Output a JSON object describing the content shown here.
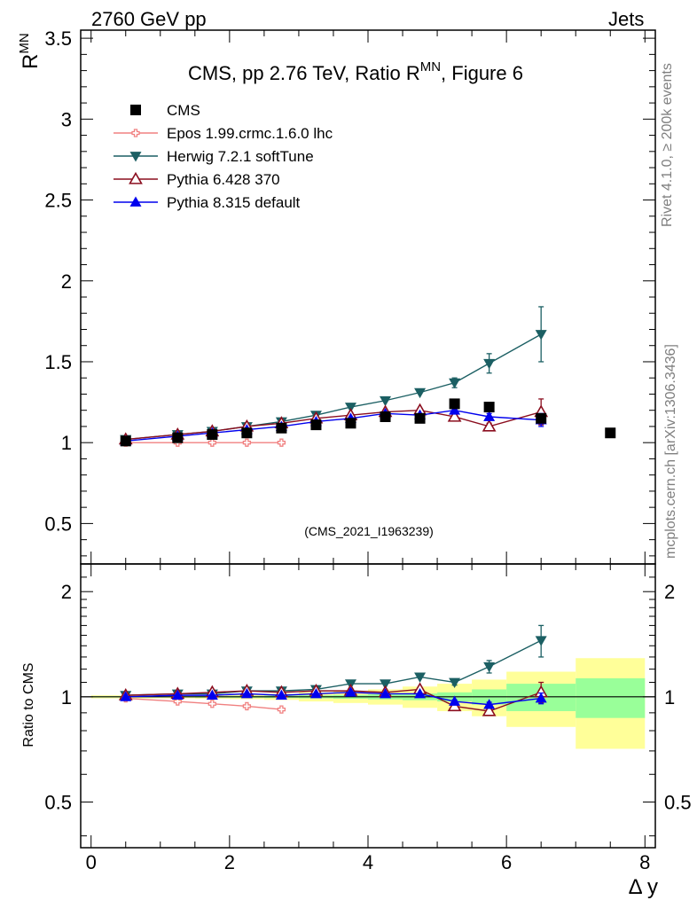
{
  "header": {
    "left": "2760 GeV pp",
    "right": "Jets"
  },
  "side_labels": {
    "rivet": "Rivet 4.1.0, ≥ 200k events",
    "mcplots": "mcplots.cern.ch [arXiv:1306.3436]"
  },
  "chart_data": {
    "type": "scatter",
    "title": "CMS, pp 2.76 TeV, Ratio R",
    "title_superscript": "MN",
    "title_suffix": ", Figure 6",
    "analysis_id": "(CMS_2021_I1963239)",
    "ylabel": "R",
    "ylabel_superscript": "MN",
    "xlabel": "Δ y",
    "ratio_ylabel": "Ratio to CMS",
    "xlim": [
      -0.15,
      8.15
    ],
    "ylim": [
      0.25,
      3.55
    ],
    "ratio_ylim": [
      0.37,
      2.4
    ],
    "x_ticks": [
      0,
      2,
      4,
      6,
      8
    ],
    "y_ticks": [
      0.5,
      1,
      1.5,
      2,
      2.5,
      3,
      3.5
    ],
    "ratio_ticks": [
      0.5,
      1,
      2
    ],
    "data": {
      "name": "CMS",
      "x": [
        0.5,
        1.25,
        1.75,
        2.25,
        2.75,
        3.25,
        3.75,
        4.25,
        4.75,
        5.25,
        5.75,
        6.5,
        7.5
      ],
      "y": [
        1.01,
        1.03,
        1.05,
        1.06,
        1.09,
        1.11,
        1.12,
        1.16,
        1.15,
        1.24,
        1.22,
        1.15,
        1.06
      ]
    },
    "series": [
      {
        "name": "Epos 1.99.crmc.1.6.0 lhc",
        "color": "#f08080",
        "marker": "cross",
        "x": [
          0.5,
          1.25,
          1.75,
          2.25,
          2.75
        ],
        "y": [
          1.0,
          1.0,
          1.0,
          1.0,
          1.0
        ],
        "ratio": [
          0.99,
          0.97,
          0.955,
          0.94,
          0.92
        ]
      },
      {
        "name": "Herwig 7.2.1 softTune",
        "color": "#1b5f63",
        "marker": "triangle-down",
        "x": [
          0.5,
          1.25,
          1.75,
          2.25,
          2.75,
          3.25,
          3.75,
          4.25,
          4.75,
          5.25,
          5.75,
          6.5
        ],
        "y": [
          1.02,
          1.05,
          1.07,
          1.1,
          1.13,
          1.17,
          1.22,
          1.26,
          1.31,
          1.37,
          1.49,
          1.67
        ],
        "yerr": [
          0,
          0,
          0,
          0,
          0,
          0,
          0,
          0,
          0,
          0.03,
          0.06,
          0.17
        ],
        "ratio": [
          1.01,
          1.02,
          1.02,
          1.04,
          1.04,
          1.05,
          1.09,
          1.09,
          1.14,
          1.1,
          1.22,
          1.45
        ],
        "ratio_err": [
          0,
          0,
          0,
          0,
          0,
          0,
          0,
          0,
          0,
          0.02,
          0.05,
          0.15
        ]
      },
      {
        "name": "Pythia 6.428 370",
        "color": "#8b0e1f",
        "marker": "triangle-open",
        "x": [
          0.5,
          1.25,
          1.75,
          2.25,
          2.75,
          3.25,
          3.75,
          4.25,
          4.75,
          5.25,
          5.75,
          6.5
        ],
        "y": [
          1.02,
          1.05,
          1.07,
          1.1,
          1.12,
          1.15,
          1.17,
          1.19,
          1.2,
          1.16,
          1.1,
          1.19
        ],
        "yerr": [
          0,
          0,
          0,
          0,
          0,
          0,
          0,
          0,
          0,
          0.02,
          0.02,
          0.08
        ],
        "ratio": [
          1.01,
          1.02,
          1.03,
          1.04,
          1.03,
          1.04,
          1.04,
          1.03,
          1.05,
          0.94,
          0.91,
          1.03
        ],
        "ratio_err": [
          0,
          0,
          0,
          0,
          0,
          0,
          0,
          0,
          0,
          0.015,
          0.02,
          0.07
        ]
      },
      {
        "name": "Pythia 8.315 default",
        "color": "#0000ee",
        "marker": "triangle-up",
        "x": [
          0.5,
          1.25,
          1.75,
          2.25,
          2.75,
          3.25,
          3.75,
          4.25,
          4.75,
          5.25,
          5.75,
          6.5
        ],
        "y": [
          1.01,
          1.04,
          1.06,
          1.08,
          1.1,
          1.13,
          1.15,
          1.18,
          1.17,
          1.2,
          1.16,
          1.14
        ],
        "yerr": [
          0,
          0,
          0,
          0,
          0,
          0,
          0,
          0,
          0,
          0.01,
          0.02,
          0.04
        ],
        "ratio": [
          1.0,
          1.01,
          1.01,
          1.02,
          1.01,
          1.02,
          1.03,
          1.02,
          1.02,
          0.97,
          0.95,
          0.99
        ],
        "ratio_err": [
          0,
          0,
          0,
          0,
          0,
          0,
          0,
          0,
          0,
          0.01,
          0.015,
          0.035
        ]
      }
    ],
    "uncertainty_bands": {
      "x_edges": [
        0,
        1,
        1.5,
        2,
        2.5,
        3,
        3.5,
        4,
        4.5,
        5,
        5.5,
        6,
        7,
        8
      ],
      "stat_half": [
        0.004,
        0.004,
        0.005,
        0.006,
        0.008,
        0.01,
        0.013,
        0.017,
        0.022,
        0.03,
        0.05,
        0.09,
        0.13
      ],
      "total_half": [
        0.01,
        0.01,
        0.012,
        0.015,
        0.02,
        0.03,
        0.04,
        0.05,
        0.07,
        0.09,
        0.12,
        0.18,
        0.29
      ],
      "stat_color": "#99ff99",
      "total_color": "#ffff99"
    }
  }
}
